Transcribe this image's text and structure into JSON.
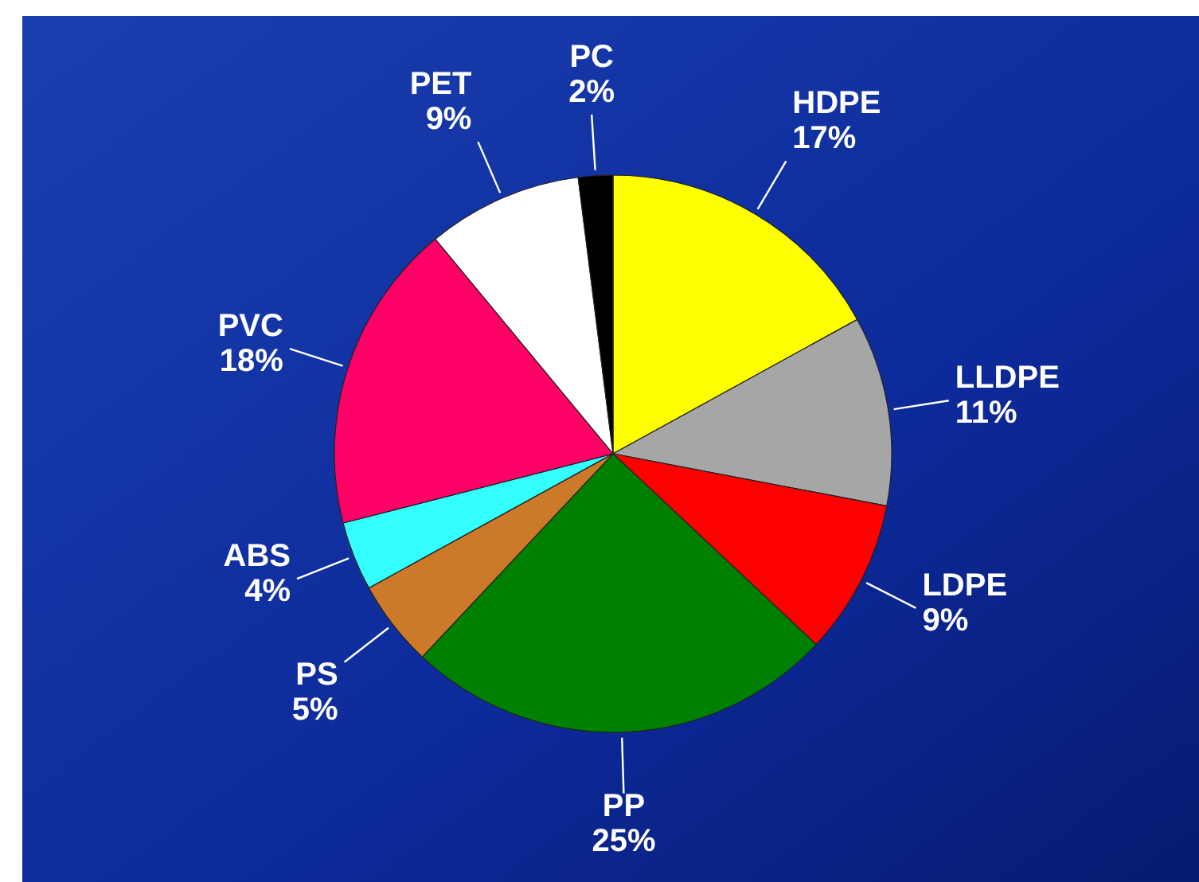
{
  "chart_data": {
    "type": "pie",
    "categories": [
      "HDPE",
      "LLDPE",
      "LDPE",
      "PP",
      "PS",
      "ABS",
      "PVC",
      "PET",
      "PC"
    ],
    "values": [
      17,
      11,
      9,
      25,
      5,
      4,
      18,
      9,
      2
    ],
    "value_labels": [
      "17%",
      "11%",
      "9%",
      "25%",
      "5%",
      "4%",
      "18%",
      "9%",
      "2%"
    ],
    "colors": [
      "#ffff00",
      "#a6a6a6",
      "#ff0000",
      "#008000",
      "#cc7a29",
      "#33ffff",
      "#ff0066",
      "#ffffff",
      "#000000"
    ]
  }
}
